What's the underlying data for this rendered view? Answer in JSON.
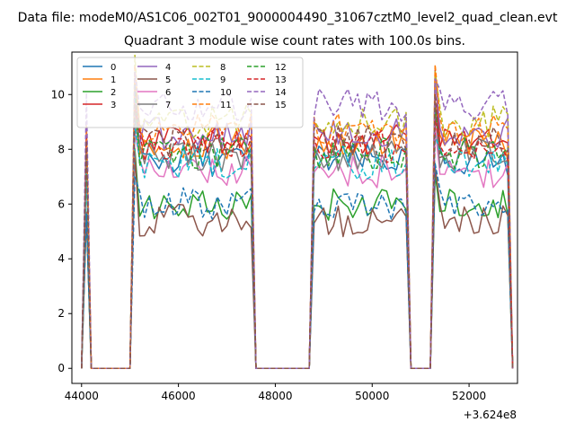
{
  "figure": {
    "suptitle": "Data file: modeM0/AS1C06_002T01_9000004490_31067cztM0_level2_quad_clean.evt",
    "title": "Quadrant 3 module wise count rates with 100.0s bins."
  },
  "chart_data": {
    "type": "line",
    "title": "Quadrant 3 module wise count rates with 100.0s bins.",
    "xlabel": "",
    "ylabel": "",
    "x_offset_label": "+3.624e8",
    "xlim": [
      43800,
      53000
    ],
    "ylim": [
      -0.55,
      11.55
    ],
    "xticks": [
      44000,
      46000,
      48000,
      50000,
      52000
    ],
    "xtick_labels": [
      "44000",
      "46000",
      "48000",
      "50000",
      "52000"
    ],
    "yticks": [
      0,
      2,
      4,
      6,
      8,
      10
    ],
    "ytick_labels": [
      "0",
      "2",
      "4",
      "6",
      "8",
      "10"
    ],
    "grid": false,
    "legend": {
      "placement": "top-left",
      "ncol": 4
    },
    "segments": [
      {
        "start": 44050,
        "end": 44150
      },
      {
        "start": 45100,
        "end": 47500
      },
      {
        "start": 48750,
        "end": 50750
      },
      {
        "start": 51300,
        "end": 52800
      }
    ],
    "gap_value": 0,
    "series": [
      {
        "name": "0",
        "color": "#1f77b4",
        "dash": "solid",
        "level": 7.6
      },
      {
        "name": "1",
        "color": "#ff7f0e",
        "dash": "solid",
        "level": 8.2
      },
      {
        "name": "2",
        "color": "#2ca02c",
        "dash": "solid",
        "level": 6.0
      },
      {
        "name": "3",
        "color": "#d62728",
        "dash": "solid",
        "level": 8.4
      },
      {
        "name": "4",
        "color": "#9467bd",
        "dash": "solid",
        "level": 8.6
      },
      {
        "name": "5",
        "color": "#8c564b",
        "dash": "solid",
        "level": 5.4
      },
      {
        "name": "6",
        "color": "#e377c2",
        "dash": "solid",
        "level": 7.2
      },
      {
        "name": "7",
        "color": "#7f7f7f",
        "dash": "solid",
        "level": 7.8
      },
      {
        "name": "8",
        "color": "#bcbd22",
        "dash": "dashed",
        "level": 9.0
      },
      {
        "name": "9",
        "color": "#17becf",
        "dash": "dashed",
        "level": 7.5
      },
      {
        "name": "10",
        "color": "#1f77b4",
        "dash": "dashed",
        "level": 6.0
      },
      {
        "name": "11",
        "color": "#ff7f0e",
        "dash": "dashed",
        "level": 8.8
      },
      {
        "name": "12",
        "color": "#2ca02c",
        "dash": "dashed",
        "level": 7.9
      },
      {
        "name": "13",
        "color": "#d62728",
        "dash": "dashed",
        "level": 8.1
      },
      {
        "name": "14",
        "color": "#9467bd",
        "dash": "dashed",
        "level": 9.6
      },
      {
        "name": "15",
        "color": "#8c564b",
        "dash": "dashed",
        "level": 8.3
      }
    ]
  }
}
